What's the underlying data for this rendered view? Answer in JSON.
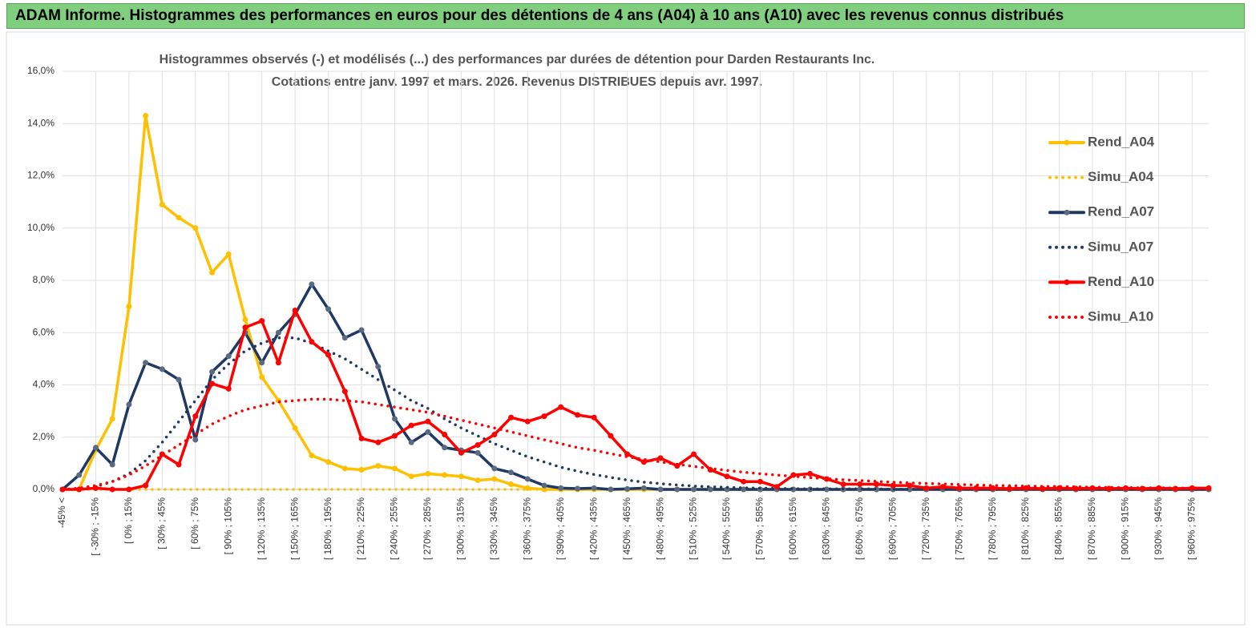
{
  "header": {
    "title": "ADAM Informe. Histogrammes des performances en euros pour des détentions de 4 ans (A04) à 10 ans (A10) avec les revenus connus distribués"
  },
  "chart_data": {
    "type": "line",
    "title": "Histogrammes observés (-) et modélisés (...) des performances par durées de détention pour Darden Restaurants Inc.",
    "subtitle": "Cotations entre janv. 1997 et mars. 2026. Revenus DISTRIBUES depuis avr. 1997.",
    "categories": [
      "-45% <",
      null,
      "[ -30% ; -15%",
      null,
      "[ 0% ; 15%",
      null,
      "[ 30% ; 45%",
      null,
      "[ 60% ; 75%",
      null,
      "[ 90% ; 105%",
      null,
      "[ 120% ; 135%",
      null,
      "[ 150% ; 165%",
      null,
      "[ 180% ; 195%",
      null,
      "[ 210% ; 225%",
      null,
      "[ 240% ; 255%",
      null,
      "[ 270% ; 285%",
      null,
      "[ 300% ; 315%",
      null,
      "[ 330% ; 345%",
      null,
      "[ 360% ; 375%",
      null,
      "[ 390% ; 405%",
      null,
      "[ 420% ; 435%",
      null,
      "[ 450% ; 465%",
      null,
      "[ 480% ; 495%",
      null,
      "[ 510% ; 525%",
      null,
      "[ 540% ; 555%",
      null,
      "[ 570% ; 585%",
      null,
      "[ 600% ; 615%",
      null,
      "[ 630% ; 645%",
      null,
      "[ 660% ; 675%",
      null,
      "[ 690% ; 705%",
      null,
      "[ 720% ; 735%",
      null,
      "[ 750% ; 765%",
      null,
      "[ 780% ; 795%",
      null,
      "[ 810% ; 825%",
      null,
      "[ 840% ; 855%",
      null,
      "[ 870% ; 885%",
      null,
      "[ 900% ; 915%",
      null,
      "[ 930% ; 945%",
      null,
      "[ 960% ; 975%",
      null
    ],
    "series": [
      {
        "name": "Rend_A04",
        "color": "#ffc000",
        "line_style": "solid",
        "markers": true,
        "values": [
          0,
          0,
          1.5,
          2.7,
          7.0,
          14.3,
          10.9,
          10.4,
          10.0,
          8.3,
          9.0,
          6.5,
          4.3,
          3.4,
          2.35,
          1.3,
          1.05,
          0.8,
          0.75,
          0.9,
          0.8,
          0.5,
          0.6,
          0.55,
          0.5,
          0.35,
          0.4,
          0.2,
          0.05,
          0,
          0,
          0,
          0,
          0,
          0,
          0,
          0,
          0,
          0,
          0,
          0,
          0,
          0,
          0,
          0,
          0,
          0,
          0,
          0,
          0,
          0,
          0,
          0,
          0,
          0,
          0,
          0,
          0,
          0,
          0,
          0,
          0,
          0,
          0,
          0,
          0,
          0,
          0,
          0,
          0
        ]
      },
      {
        "name": "Simu_A04",
        "color": "#ffc000",
        "line_style": "dotted",
        "markers": false,
        "values": [
          0,
          0,
          0,
          0,
          0,
          0,
          0,
          0,
          0,
          0,
          0,
          0,
          0,
          0,
          0,
          0,
          0,
          0,
          0,
          0,
          0,
          0,
          0,
          0,
          0,
          0,
          0,
          0,
          0,
          0,
          0,
          0,
          0,
          0,
          0,
          0,
          0,
          0,
          0,
          0,
          0,
          0,
          0,
          0,
          0,
          0,
          0,
          0,
          0,
          0,
          0,
          0,
          0,
          0,
          0,
          0,
          0,
          0,
          0,
          0,
          0,
          0,
          0,
          0,
          0,
          0,
          0,
          0,
          0,
          0
        ]
      },
      {
        "name": "Rend_A07",
        "color": "#1f3864",
        "marker_color": "#5a6a80",
        "line_style": "solid",
        "markers": true,
        "values": [
          0,
          0.55,
          1.6,
          0.95,
          3.25,
          4.85,
          4.6,
          4.2,
          1.9,
          4.5,
          5.1,
          6.0,
          4.85,
          6.0,
          6.7,
          7.85,
          6.9,
          5.8,
          6.1,
          4.7,
          2.7,
          1.8,
          2.2,
          1.6,
          1.5,
          1.4,
          0.8,
          0.65,
          0.4,
          0.15,
          0.05,
          0.03,
          0.05,
          0,
          0.02,
          0.05,
          0,
          0,
          0,
          0,
          0,
          0,
          0,
          0,
          0,
          0,
          0,
          0,
          0,
          0,
          0,
          0,
          0,
          0,
          0,
          0,
          0,
          0,
          0,
          0,
          0,
          0,
          0,
          0,
          0,
          0,
          0,
          0,
          0,
          0
        ]
      },
      {
        "name": "Simu_A07",
        "color": "#1f3864",
        "line_style": "dotted",
        "markers": false,
        "values": [
          0,
          0.02,
          0.1,
          0.3,
          0.6,
          1.1,
          1.8,
          2.6,
          3.4,
          4.2,
          4.8,
          5.3,
          5.6,
          5.8,
          5.8,
          5.6,
          5.3,
          5.0,
          4.6,
          4.2,
          3.8,
          3.4,
          3.1,
          2.7,
          2.35,
          2.05,
          1.75,
          1.5,
          1.25,
          1.05,
          0.85,
          0.7,
          0.57,
          0.46,
          0.36,
          0.28,
          0.22,
          0.17,
          0.13,
          0.1,
          0.08,
          0.06,
          0.05,
          0.04,
          0.03,
          0.02,
          0.02,
          0.02,
          0.02,
          0.02,
          0.01,
          0.01,
          0.01,
          0.01,
          0.01,
          0.01,
          0.01,
          0.01,
          0.01,
          0.01,
          0,
          0,
          0,
          0,
          0,
          0,
          0,
          0,
          0,
          0
        ]
      },
      {
        "name": "Rend_A10",
        "color": "#ff0000",
        "line_style": "solid",
        "markers": true,
        "values": [
          0,
          0,
          0.05,
          0,
          0,
          0.15,
          1.35,
          0.95,
          2.8,
          4.05,
          3.85,
          6.2,
          6.45,
          4.85,
          6.85,
          5.65,
          5.15,
          3.75,
          1.95,
          1.8,
          2.05,
          2.45,
          2.6,
          2.1,
          1.4,
          1.7,
          2.1,
          2.75,
          2.6,
          2.8,
          3.15,
          2.85,
          2.75,
          2.05,
          1.35,
          1.05,
          1.2,
          0.9,
          1.35,
          0.75,
          0.5,
          0.3,
          0.3,
          0.1,
          0.55,
          0.6,
          0.4,
          0.2,
          0.2,
          0.2,
          0.15,
          0.15,
          0.05,
          0.1,
          0.05,
          0.05,
          0.05,
          0.03,
          0.05,
          0.03,
          0.05,
          0.03,
          0.05,
          0.03,
          0.05,
          0.03,
          0.05,
          0.03,
          0.05,
          0.05
        ]
      },
      {
        "name": "Simu_A10",
        "color": "#ff0000",
        "line_style": "dotted",
        "markers": false,
        "values": [
          0,
          0.05,
          0.15,
          0.3,
          0.55,
          0.9,
          1.3,
          1.7,
          2.1,
          2.5,
          2.8,
          3.05,
          3.2,
          3.35,
          3.4,
          3.45,
          3.45,
          3.4,
          3.35,
          3.25,
          3.15,
          3.05,
          2.95,
          2.8,
          2.65,
          2.5,
          2.35,
          2.2,
          2.05,
          1.9,
          1.75,
          1.6,
          1.5,
          1.37,
          1.25,
          1.15,
          1.05,
          0.96,
          0.88,
          0.8,
          0.73,
          0.66,
          0.6,
          0.55,
          0.5,
          0.45,
          0.41,
          0.37,
          0.34,
          0.31,
          0.28,
          0.25,
          0.23,
          0.21,
          0.19,
          0.17,
          0.15,
          0.14,
          0.13,
          0.12,
          0.11,
          0.1,
          0.09,
          0.08,
          0.07,
          0.065,
          0.06,
          0.055,
          0.05,
          0.045
        ]
      }
    ],
    "ylim": [
      0,
      16
    ],
    "yticks": [
      {
        "value": 0,
        "label": "0,0%"
      },
      {
        "value": 2,
        "label": "2,0%"
      },
      {
        "value": 4,
        "label": "4,0%"
      },
      {
        "value": 6,
        "label": "6,0%"
      },
      {
        "value": 8,
        "label": "8,0%"
      },
      {
        "value": 10,
        "label": "10,0%"
      },
      {
        "value": 12,
        "label": "12,0%"
      },
      {
        "value": 14,
        "label": "14,0%"
      },
      {
        "value": 16,
        "label": "16,0%"
      }
    ],
    "grid": true,
    "legend": "right"
  }
}
